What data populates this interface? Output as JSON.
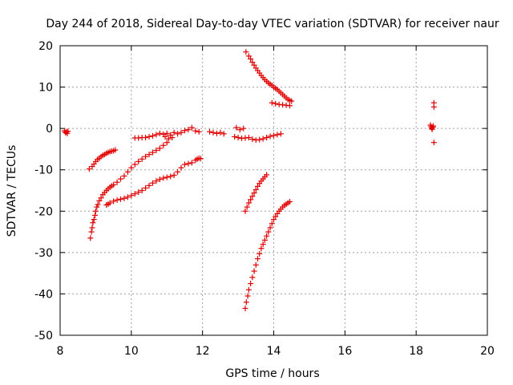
{
  "chart_data": {
    "type": "scatter",
    "title": "Day 244 of 2018, Sidereal Day-to-day VTEC variation (SDTVAR) for receiver naur",
    "xlabel": "GPS time / hours",
    "ylabel": "SDTVAR / TECUs",
    "xlim": [
      8,
      20
    ],
    "ylim": [
      -50,
      20
    ],
    "xticks": [
      8,
      10,
      12,
      14,
      16,
      18,
      20
    ],
    "yticks": [
      -50,
      -40,
      -30,
      -20,
      -10,
      0,
      10,
      20
    ],
    "xtick_labels": [
      "8",
      "10",
      "12",
      "14",
      "16",
      "18",
      "20"
    ],
    "ytick_labels": [
      "-50",
      "-40",
      "-30",
      "-20",
      "-10",
      "0",
      "10",
      "20"
    ],
    "grid": true,
    "marker": "+",
    "marker_color": "#e00000",
    "series": [
      {
        "points": [
          [
            8.12,
            -0.6
          ],
          [
            8.15,
            -1.0
          ],
          [
            8.18,
            -0.8
          ],
          [
            8.2,
            -1.2
          ],
          [
            8.22,
            -0.7
          ],
          [
            8.85,
            -26.5
          ],
          [
            8.88,
            -25.0
          ],
          [
            8.9,
            -24.0
          ],
          [
            8.92,
            -22.8
          ],
          [
            8.95,
            -22.0
          ],
          [
            8.98,
            -21.0
          ],
          [
            9.0,
            -20.0
          ],
          [
            9.03,
            -19.0
          ],
          [
            9.06,
            -18.4
          ],
          [
            9.1,
            -17.5
          ],
          [
            9.15,
            -16.8
          ],
          [
            9.2,
            -16.0
          ],
          [
            9.25,
            -15.5
          ],
          [
            9.3,
            -15.0
          ],
          [
            9.35,
            -14.6
          ],
          [
            9.4,
            -14.2
          ],
          [
            9.45,
            -13.9
          ],
          [
            9.5,
            -13.6
          ],
          [
            9.6,
            -13.0
          ],
          [
            9.7,
            -12.2
          ],
          [
            9.8,
            -11.5
          ],
          [
            9.9,
            -10.5
          ],
          [
            10.0,
            -9.5
          ],
          [
            10.1,
            -8.7
          ],
          [
            10.2,
            -8.0
          ],
          [
            10.3,
            -7.4
          ],
          [
            10.4,
            -6.8
          ],
          [
            10.5,
            -6.3
          ],
          [
            10.6,
            -5.8
          ],
          [
            10.7,
            -5.3
          ],
          [
            10.8,
            -4.8
          ],
          [
            10.9,
            -4.1
          ],
          [
            11.0,
            -3.4
          ],
          [
            8.82,
            -9.8
          ],
          [
            8.9,
            -9.2
          ],
          [
            8.95,
            -8.6
          ],
          [
            9.0,
            -8.0
          ],
          [
            9.05,
            -7.5
          ],
          [
            9.1,
            -7.2
          ],
          [
            9.15,
            -6.8
          ],
          [
            9.2,
            -6.5
          ],
          [
            9.25,
            -6.3
          ],
          [
            9.3,
            -6.0
          ],
          [
            9.35,
            -5.8
          ],
          [
            9.4,
            -5.6
          ],
          [
            9.45,
            -5.5
          ],
          [
            9.5,
            -5.4
          ],
          [
            9.55,
            -5.2
          ],
          [
            9.3,
            -18.5
          ],
          [
            9.35,
            -18.3
          ],
          [
            9.4,
            -18.0
          ],
          [
            9.5,
            -17.6
          ],
          [
            9.6,
            -17.3
          ],
          [
            9.7,
            -17.1
          ],
          [
            9.8,
            -16.9
          ],
          [
            9.9,
            -16.6
          ],
          [
            10.0,
            -16.2
          ],
          [
            10.1,
            -15.8
          ],
          [
            10.2,
            -15.4
          ],
          [
            10.3,
            -15.0
          ],
          [
            10.4,
            -14.4
          ],
          [
            10.5,
            -13.8
          ],
          [
            10.6,
            -13.2
          ],
          [
            10.7,
            -12.7
          ],
          [
            10.8,
            -12.3
          ],
          [
            10.9,
            -12.0
          ],
          [
            11.0,
            -11.8
          ],
          [
            11.1,
            -11.6
          ],
          [
            11.2,
            -11.3
          ],
          [
            11.3,
            -10.5
          ],
          [
            11.4,
            -9.5
          ],
          [
            11.5,
            -8.7
          ],
          [
            11.6,
            -8.5
          ],
          [
            11.7,
            -8.3
          ],
          [
            11.8,
            -7.7
          ],
          [
            11.85,
            -7.4
          ],
          [
            11.9,
            -7.2
          ],
          [
            11.95,
            -7.3
          ],
          [
            10.1,
            -2.3
          ],
          [
            10.2,
            -2.3
          ],
          [
            10.3,
            -2.2
          ],
          [
            10.4,
            -2.2
          ],
          [
            10.5,
            -2.0
          ],
          [
            10.6,
            -1.8
          ],
          [
            10.7,
            -1.5
          ],
          [
            10.8,
            -1.2
          ],
          [
            10.9,
            -1.4
          ],
          [
            11.0,
            -1.2
          ],
          [
            11.1,
            -1.6
          ],
          [
            11.2,
            -1.0
          ],
          [
            11.3,
            -1.3
          ],
          [
            11.4,
            -1.0
          ],
          [
            11.5,
            -0.5
          ],
          [
            11.6,
            -0.3
          ],
          [
            11.7,
            0.2
          ],
          [
            11.8,
            -0.6
          ],
          [
            11.9,
            -0.8
          ],
          [
            11.05,
            -2.5
          ],
          [
            11.15,
            -2.2
          ],
          [
            10.95,
            -2.0
          ],
          [
            12.2,
            -0.8
          ],
          [
            12.3,
            -1.0
          ],
          [
            12.4,
            -1.2
          ],
          [
            12.5,
            -1.0
          ],
          [
            12.6,
            -1.3
          ],
          [
            12.9,
            -2.0
          ],
          [
            12.95,
            0.2
          ],
          [
            13.0,
            -2.2
          ],
          [
            13.05,
            -0.3
          ],
          [
            13.1,
            -2.4
          ],
          [
            13.15,
            0.0
          ],
          [
            13.2,
            -2.3
          ],
          [
            13.3,
            -2.2
          ],
          [
            13.4,
            -2.6
          ],
          [
            13.5,
            -2.8
          ],
          [
            13.6,
            -2.7
          ],
          [
            13.7,
            -2.5
          ],
          [
            13.8,
            -2.2
          ],
          [
            13.9,
            -1.9
          ],
          [
            14.0,
            -1.7
          ],
          [
            14.1,
            -1.5
          ],
          [
            14.2,
            -1.3
          ],
          [
            13.22,
            18.5
          ],
          [
            13.3,
            17.5
          ],
          [
            13.35,
            16.8
          ],
          [
            13.4,
            16.0
          ],
          [
            13.45,
            15.3
          ],
          [
            13.5,
            14.6
          ],
          [
            13.55,
            14.0
          ],
          [
            13.6,
            13.4
          ],
          [
            13.65,
            12.8
          ],
          [
            13.7,
            12.3
          ],
          [
            13.75,
            11.8
          ],
          [
            13.8,
            11.4
          ],
          [
            13.85,
            11.0
          ],
          [
            13.9,
            10.7
          ],
          [
            13.95,
            10.4
          ],
          [
            14.0,
            10.0
          ],
          [
            14.05,
            9.7
          ],
          [
            14.1,
            9.4
          ],
          [
            14.15,
            9.0
          ],
          [
            14.2,
            8.6
          ],
          [
            14.25,
            8.2
          ],
          [
            14.3,
            7.8
          ],
          [
            14.35,
            7.4
          ],
          [
            14.4,
            7.0
          ],
          [
            14.45,
            6.8
          ],
          [
            14.5,
            6.6
          ],
          [
            13.95,
            6.2
          ],
          [
            14.05,
            6.0
          ],
          [
            14.15,
            5.8
          ],
          [
            14.25,
            5.7
          ],
          [
            14.35,
            5.6
          ],
          [
            14.45,
            5.5
          ],
          [
            13.2,
            -20.0
          ],
          [
            13.25,
            -19.0
          ],
          [
            13.3,
            -18.0
          ],
          [
            13.35,
            -17.2
          ],
          [
            13.4,
            -16.4
          ],
          [
            13.45,
            -15.6
          ],
          [
            13.5,
            -14.8
          ],
          [
            13.55,
            -14.0
          ],
          [
            13.6,
            -13.3
          ],
          [
            13.65,
            -12.7
          ],
          [
            13.7,
            -12.2
          ],
          [
            13.75,
            -11.7
          ],
          [
            13.8,
            -11.2
          ],
          [
            13.2,
            -43.5
          ],
          [
            13.23,
            -42.0
          ],
          [
            13.27,
            -40.5
          ],
          [
            13.3,
            -39.0
          ],
          [
            13.35,
            -37.5
          ],
          [
            13.4,
            -36.0
          ],
          [
            13.45,
            -34.5
          ],
          [
            13.5,
            -33.0
          ],
          [
            13.55,
            -31.5
          ],
          [
            13.6,
            -30.3
          ],
          [
            13.65,
            -29.0
          ],
          [
            13.7,
            -28.0
          ],
          [
            13.75,
            -27.0
          ],
          [
            13.8,
            -26.0
          ],
          [
            13.85,
            -25.0
          ],
          [
            13.9,
            -24.0
          ],
          [
            13.95,
            -23.0
          ],
          [
            14.0,
            -22.0
          ],
          [
            14.05,
            -21.3
          ],
          [
            14.1,
            -20.6
          ],
          [
            14.15,
            -20.0
          ],
          [
            14.2,
            -19.5
          ],
          [
            14.25,
            -19.0
          ],
          [
            14.3,
            -18.6
          ],
          [
            14.35,
            -18.3
          ],
          [
            14.4,
            -18.0
          ],
          [
            14.45,
            -17.7
          ],
          [
            18.4,
            0.8
          ],
          [
            18.42,
            0.4
          ],
          [
            18.44,
            0.0
          ],
          [
            18.45,
            -0.2
          ],
          [
            18.47,
            0.3
          ],
          [
            18.48,
            0.6
          ],
          [
            18.5,
            6.2
          ],
          [
            18.5,
            5.2
          ],
          [
            18.5,
            -3.4
          ]
        ]
      }
    ]
  }
}
